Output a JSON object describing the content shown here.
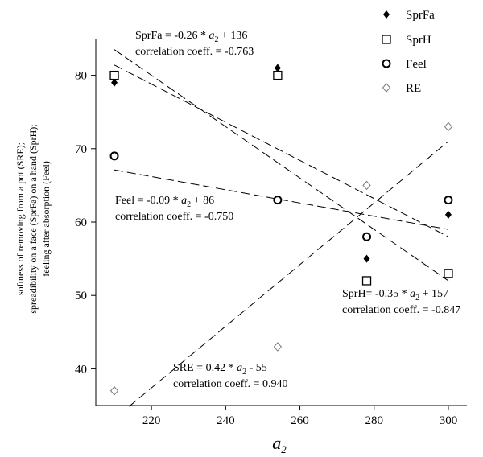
{
  "chart_data": {
    "type": "scatter",
    "xlabel": "a",
    "xlabel_sub": "2",
    "ylabel_lines": [
      "softness of removing from a pot (SRE);",
      "spreadibility on a face (SprFa) on a hand (SprH);",
      "feeling after absorption (Feel)"
    ],
    "xlim": [
      205,
      305
    ],
    "ylim": [
      35,
      85
    ],
    "x_ticks": [
      220,
      240,
      260,
      280,
      300
    ],
    "y_ticks": [
      40,
      50,
      60,
      70,
      80
    ],
    "legend_position": "top-right",
    "series": [
      {
        "name": "SprFa",
        "marker": "filled-diamond",
        "x": [
          210,
          254,
          278,
          300
        ],
        "y": [
          79,
          81,
          55,
          61
        ],
        "fit": {
          "slope": -0.26,
          "intercept": 136,
          "x_range": [
            210,
            300
          ]
        }
      },
      {
        "name": "SprH",
        "marker": "open-square",
        "x": [
          210,
          254,
          278,
          300
        ],
        "y": [
          80,
          80,
          52,
          53
        ],
        "fit": {
          "slope": -0.35,
          "intercept": 157,
          "x_range": [
            210,
            300
          ]
        }
      },
      {
        "name": "Feel",
        "marker": "open-circle",
        "x": [
          210,
          254,
          278,
          300
        ],
        "y": [
          69,
          63,
          58,
          63
        ],
        "fit": {
          "slope": -0.09,
          "intercept": 86,
          "x_range": [
            210,
            300
          ]
        }
      },
      {
        "name": "RE",
        "marker": "open-diamond",
        "x": [
          210,
          254,
          278,
          300
        ],
        "y": [
          37,
          43,
          65,
          73
        ],
        "fit": {
          "slope": 0.42,
          "intercept": -55,
          "x_range": [
            214,
            300
          ]
        }
      }
    ],
    "annotations": [
      {
        "id": "sprfa",
        "lines": [
          [
            "SprFa = -0.26 * ",
            "a",
            "2",
            " + 136"
          ],
          [
            "correlation coeff. = -0.763"
          ]
        ]
      },
      {
        "id": "feel",
        "lines": [
          [
            "Feel = -0.09 * ",
            "a",
            "2",
            " + 86"
          ],
          [
            "correlation coeff. = -0.750"
          ]
        ]
      },
      {
        "id": "sprh",
        "lines": [
          [
            "SprH= -0.35 * ",
            "a",
            "2",
            " + 157"
          ],
          [
            "correlation coeff. = -0.847"
          ]
        ]
      },
      {
        "id": "sre",
        "lines": [
          [
            "SRE = 0.42 * ",
            "a",
            "2",
            " - 55"
          ],
          [
            "correlation coeff. = 0.940"
          ]
        ]
      }
    ]
  }
}
